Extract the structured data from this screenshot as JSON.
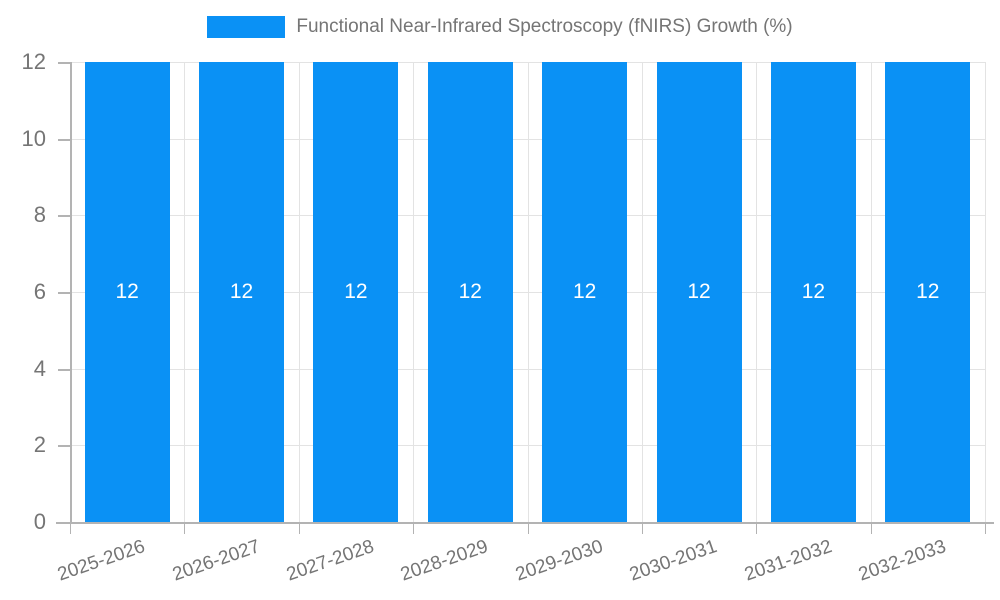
{
  "chart_data": {
    "type": "bar",
    "title": "Functional Near-Infrared Spectroscopy (fNIRS) Growth (%)",
    "categories": [
      "2025-2026",
      "2026-2027",
      "2027-2028",
      "2028-2029",
      "2029-2030",
      "2030-2031",
      "2031-2032",
      "2032-2033"
    ],
    "values": [
      12,
      12,
      12,
      12,
      12,
      12,
      12,
      12
    ],
    "bar_labels": [
      "12",
      "12",
      "12",
      "12",
      "12",
      "12",
      "12",
      "12"
    ],
    "xlabel": "",
    "ylabel": "",
    "ylim": [
      0,
      12
    ],
    "yticks": [
      0,
      2,
      4,
      6,
      8,
      10,
      12
    ],
    "ytick_labels": [
      "0",
      "2",
      "4",
      "6",
      "8",
      "10",
      "12"
    ],
    "grid": true,
    "legend_position": "top",
    "colors": {
      "bar": "#0a91f5",
      "text": "#757575",
      "grid": "#e3e3e3",
      "axis": "#b3b3b3",
      "bar_label": "#ffffff",
      "background": "#ffffff"
    }
  }
}
